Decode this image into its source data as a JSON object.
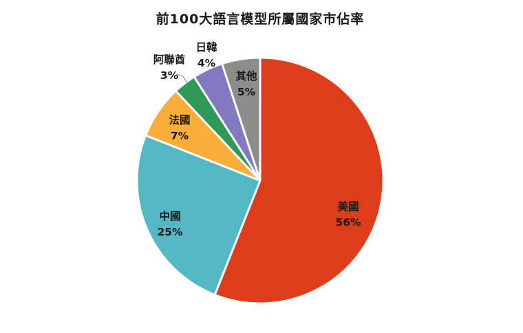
{
  "page": {
    "background": "#ffffff"
  },
  "chart_data": {
    "type": "pie",
    "title": "前100大語言模型所屬國家市佔率",
    "legend_position": "none",
    "start_angle_deg": 0,
    "direction": "clockwise",
    "data_label_format": "name + percent",
    "slices": [
      {
        "label": "美國",
        "value": 56,
        "pct_label": "56%",
        "color": "#DE3D1C",
        "label_position": "inside",
        "leader_line": false
      },
      {
        "label": "中國",
        "value": 25,
        "pct_label": "25%",
        "color": "#53B7C5",
        "label_position": "inside",
        "leader_line": false
      },
      {
        "label": "法國",
        "value": 7,
        "pct_label": "7%",
        "color": "#FBAD3A",
        "label_position": "inside",
        "leader_line": false
      },
      {
        "label": "阿聯酋",
        "value": 3,
        "pct_label": "3%",
        "color": "#2F9A58",
        "label_position": "outside",
        "leader_line": true
      },
      {
        "label": "日韓",
        "value": 4,
        "pct_label": "4%",
        "color": "#8179C1",
        "label_position": "outside",
        "leader_line": false
      },
      {
        "label": "其他",
        "value": 5,
        "pct_label": "5%",
        "color": "#8C8C8C",
        "label_position": "inside",
        "leader_line": false
      }
    ],
    "text_color": "#1a1a1a",
    "separator_color": "#ffffff"
  }
}
